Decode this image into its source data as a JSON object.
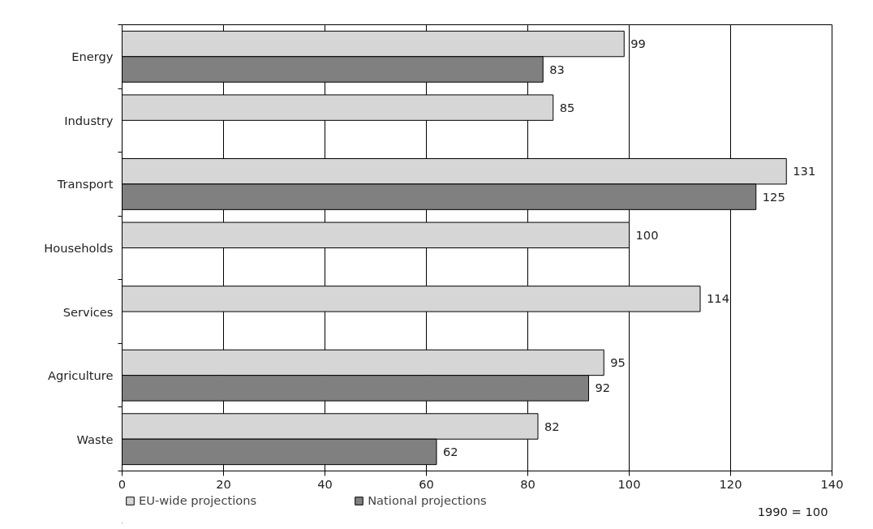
{
  "chart_data": {
    "type": "bar",
    "orientation": "horizontal",
    "categories": [
      "Energy",
      "Industry",
      "Transport",
      "Households",
      "Services",
      "Agriculture",
      "Waste"
    ],
    "series": [
      {
        "name": "EU-wide projections",
        "color": "#d6d6d6",
        "values": [
          99,
          85,
          131,
          100,
          114,
          95,
          82
        ]
      },
      {
        "name": "National projections",
        "color": "#808080",
        "values": [
          83,
          null,
          125,
          null,
          null,
          92,
          62
        ]
      }
    ],
    "xlim": [
      0,
      140
    ],
    "xticks": [
      0,
      20,
      40,
      60,
      80,
      100,
      120,
      140
    ],
    "grid": "x",
    "legend": "bottom left",
    "data_labels": true,
    "annotations": [
      "1990 = 100"
    ]
  }
}
